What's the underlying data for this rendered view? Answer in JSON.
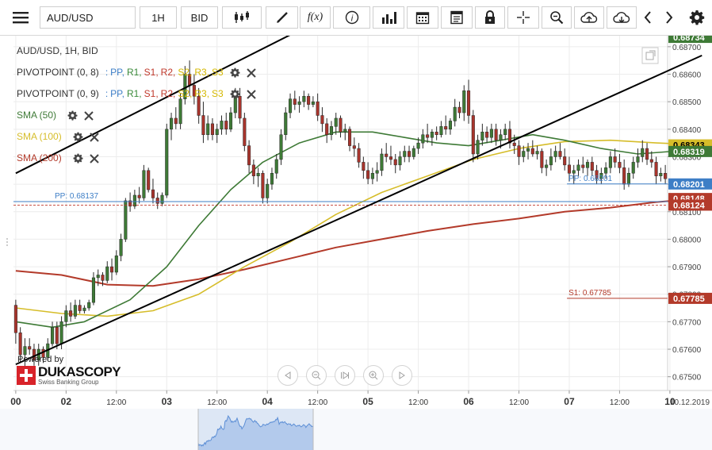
{
  "toolbar": {
    "symbol": "AUD/USD",
    "timeframe": "1H",
    "price_type": "BID",
    "buttons": [
      "menu-icon",
      "candles-icon",
      "draw-icon",
      "fx",
      "info-icon",
      "bars-icon",
      "calendar-icon",
      "report-icon",
      "lock-icon",
      "crosshair-icon",
      "zoom-icon",
      "upload-icon",
      "download-icon",
      "prev-icon",
      "next-icon",
      "gear-icon"
    ],
    "fx_label": "f(x)"
  },
  "legend": {
    "title": "AUD/USD, 1H, BID",
    "pivot1": {
      "name": "PIVOTPOINT (0, 8)"
    },
    "pivot2": {
      "name": "PIVOTPOINT (0, 9)"
    },
    "pivot_colon": ":",
    "pivot_keys": [
      "PP",
      "R1",
      "S1",
      "R2",
      "S2",
      "R3",
      "S3"
    ],
    "pivot_colors": [
      "#3d7ec6",
      "#3a8a3a",
      "#c0392b",
      "#c0392b",
      "#d4b800",
      "#d4b800",
      "#d4b800"
    ],
    "sma50": "SMA (50)",
    "sma100": "SMA (100)",
    "sma200": "SMA (200)"
  },
  "branding": {
    "powered_by": "Powered by",
    "name": "DUKASCOPY",
    "tagline": "Swiss Banking Group"
  },
  "colors": {
    "sma50": "#3e7a36",
    "sma100": "#d6bd2a",
    "sma200": "#b33a2a",
    "up": "#3e7a36",
    "down": "#a8342c",
    "pp": "#3d7ec6",
    "s1": "#b33a2a",
    "trend": "#000000"
  },
  "chart_data": {
    "type": "candlestick",
    "ylim": [
      0.6745,
      0.6874
    ],
    "y_ticks": [
      0.675,
      0.676,
      0.677,
      0.678,
      0.679,
      0.68,
      0.681,
      0.682,
      0.683,
      0.684,
      0.685,
      0.686,
      0.687
    ],
    "y_tick_labels": [
      "0.67500",
      "0.67600",
      "0.67700",
      "0.67800",
      "0.67900",
      "0.68000",
      "0.68100",
      "0.68200",
      "0.68300",
      "0.68400",
      "0.68500",
      "0.68600",
      "0.68700"
    ],
    "x_ticks": [
      {
        "label": "00",
        "bar": 0
      },
      {
        "label": "02",
        "bar": 11
      },
      {
        "label": "12:00",
        "bar": 22
      },
      {
        "label": "03",
        "bar": 33
      },
      {
        "label": "12:00",
        "bar": 44
      },
      {
        "label": "04",
        "bar": 55
      },
      {
        "label": "12:00",
        "bar": 66
      },
      {
        "label": "05",
        "bar": 77
      },
      {
        "label": "12:00",
        "bar": 88
      },
      {
        "label": "06",
        "bar": 99
      },
      {
        "label": "12:00",
        "bar": 110
      },
      {
        "label": "07",
        "bar": 121
      },
      {
        "label": "12:00",
        "bar": 132
      },
      {
        "label": "10",
        "bar": 143
      }
    ],
    "date_label": "10.12.2019",
    "candles": [
      [
        0.6776,
        0.6778,
        0.6762,
        0.6766
      ],
      [
        0.6766,
        0.6768,
        0.6755,
        0.6758
      ],
      [
        0.6758,
        0.6764,
        0.6753,
        0.6761
      ],
      [
        0.6761,
        0.6764,
        0.6758,
        0.676
      ],
      [
        0.676,
        0.6762,
        0.6754,
        0.6756
      ],
      [
        0.6756,
        0.6762,
        0.6754,
        0.676
      ],
      [
        0.676,
        0.6761,
        0.6755,
        0.6757
      ],
      [
        0.6757,
        0.6764,
        0.6756,
        0.6762
      ],
      [
        0.6762,
        0.677,
        0.6761,
        0.6768
      ],
      [
        0.6768,
        0.677,
        0.676,
        0.6762
      ],
      [
        0.6762,
        0.6772,
        0.676,
        0.677
      ],
      [
        0.677,
        0.6776,
        0.6768,
        0.6774
      ],
      [
        0.6774,
        0.6777,
        0.677,
        0.6772
      ],
      [
        0.6772,
        0.6778,
        0.6771,
        0.6776
      ],
      [
        0.6776,
        0.6778,
        0.6773,
        0.6774
      ],
      [
        0.6774,
        0.6776,
        0.6773,
        0.6775
      ],
      [
        0.6775,
        0.6778,
        0.6774,
        0.6777
      ],
      [
        0.6777,
        0.6788,
        0.6776,
        0.6786
      ],
      [
        0.6786,
        0.6789,
        0.6783,
        0.6787
      ],
      [
        0.6787,
        0.6788,
        0.6783,
        0.6785
      ],
      [
        0.6785,
        0.6792,
        0.6784,
        0.679
      ],
      [
        0.679,
        0.6793,
        0.6785,
        0.6788
      ],
      [
        0.6788,
        0.6796,
        0.6787,
        0.6794
      ],
      [
        0.6794,
        0.6802,
        0.6792,
        0.68
      ],
      [
        0.68,
        0.6815,
        0.6799,
        0.6814
      ],
      [
        0.6814,
        0.6817,
        0.681,
        0.6812
      ],
      [
        0.6812,
        0.6818,
        0.6811,
        0.6816
      ],
      [
        0.6816,
        0.6819,
        0.6813,
        0.6815
      ],
      [
        0.6815,
        0.6827,
        0.6814,
        0.6825
      ],
      [
        0.6825,
        0.6826,
        0.6817,
        0.6818
      ],
      [
        0.6818,
        0.6822,
        0.6813,
        0.6815
      ],
      [
        0.6815,
        0.6817,
        0.6811,
        0.6813
      ],
      [
        0.6813,
        0.6817,
        0.6812,
        0.6816
      ],
      [
        0.6816,
        0.6842,
        0.6815,
        0.684
      ],
      [
        0.684,
        0.6846,
        0.6836,
        0.6844
      ],
      [
        0.6844,
        0.6848,
        0.684,
        0.6842
      ],
      [
        0.6842,
        0.6853,
        0.684,
        0.6851
      ],
      [
        0.6851,
        0.6863,
        0.6849,
        0.686
      ],
      [
        0.686,
        0.6865,
        0.6852,
        0.6856
      ],
      [
        0.6856,
        0.686,
        0.6849,
        0.6852
      ],
      [
        0.6852,
        0.6855,
        0.6842,
        0.6845
      ],
      [
        0.6845,
        0.685,
        0.6835,
        0.6838
      ],
      [
        0.6838,
        0.6845,
        0.6836,
        0.6842
      ],
      [
        0.6842,
        0.6844,
        0.6836,
        0.6838
      ],
      [
        0.6838,
        0.6842,
        0.6835,
        0.684
      ],
      [
        0.684,
        0.6845,
        0.6838,
        0.6843
      ],
      [
        0.6843,
        0.6846,
        0.6838,
        0.684
      ],
      [
        0.684,
        0.6848,
        0.6839,
        0.6846
      ],
      [
        0.6846,
        0.6855,
        0.6844,
        0.6852
      ],
      [
        0.6852,
        0.6855,
        0.6842,
        0.6844
      ],
      [
        0.6844,
        0.6846,
        0.6832,
        0.6834
      ],
      [
        0.6834,
        0.6836,
        0.6824,
        0.6827
      ],
      [
        0.6827,
        0.6829,
        0.682,
        0.6823
      ],
      [
        0.6823,
        0.6826,
        0.6819,
        0.6824
      ],
      [
        0.6824,
        0.6825,
        0.6813,
        0.6815
      ],
      [
        0.6815,
        0.6822,
        0.6813,
        0.682
      ],
      [
        0.682,
        0.6826,
        0.6818,
        0.6824
      ],
      [
        0.6824,
        0.6831,
        0.6822,
        0.6829
      ],
      [
        0.6829,
        0.684,
        0.6827,
        0.6838
      ],
      [
        0.6838,
        0.6848,
        0.6836,
        0.6846
      ],
      [
        0.6846,
        0.6853,
        0.6844,
        0.6851
      ],
      [
        0.6851,
        0.6854,
        0.6847,
        0.6849
      ],
      [
        0.6849,
        0.6852,
        0.6846,
        0.685
      ],
      [
        0.685,
        0.6854,
        0.6848,
        0.6852
      ],
      [
        0.6852,
        0.6853,
        0.6847,
        0.6849
      ],
      [
        0.6849,
        0.6852,
        0.6848,
        0.685
      ],
      [
        0.685,
        0.6853,
        0.6843,
        0.6845
      ],
      [
        0.6845,
        0.6848,
        0.6839,
        0.6842
      ],
      [
        0.6842,
        0.6844,
        0.6835,
        0.6838
      ],
      [
        0.6838,
        0.6843,
        0.6836,
        0.6841
      ],
      [
        0.6841,
        0.6846,
        0.6838,
        0.6844
      ],
      [
        0.6844,
        0.6845,
        0.6837,
        0.6839
      ],
      [
        0.6839,
        0.6842,
        0.6836,
        0.684
      ],
      [
        0.684,
        0.6841,
        0.6832,
        0.6834
      ],
      [
        0.6834,
        0.6837,
        0.683,
        0.6833
      ],
      [
        0.6833,
        0.6835,
        0.6826,
        0.6828
      ],
      [
        0.6828,
        0.683,
        0.6822,
        0.6825
      ],
      [
        0.6825,
        0.6828,
        0.682,
        0.6822
      ],
      [
        0.6822,
        0.6826,
        0.682,
        0.6824
      ],
      [
        0.6824,
        0.6828,
        0.6821,
        0.6825
      ],
      [
        0.6825,
        0.6833,
        0.6823,
        0.6831
      ],
      [
        0.6831,
        0.6835,
        0.6828,
        0.683
      ],
      [
        0.683,
        0.6834,
        0.6827,
        0.6829
      ],
      [
        0.6829,
        0.6831,
        0.6824,
        0.6827
      ],
      [
        0.6827,
        0.6832,
        0.6825,
        0.683
      ],
      [
        0.683,
        0.6834,
        0.6828,
        0.6832
      ],
      [
        0.6832,
        0.6834,
        0.6828,
        0.683
      ],
      [
        0.683,
        0.6834,
        0.6829,
        0.6833
      ],
      [
        0.6833,
        0.6837,
        0.6831,
        0.6835
      ],
      [
        0.6835,
        0.684,
        0.6833,
        0.6838
      ],
      [
        0.6838,
        0.6842,
        0.6835,
        0.6837
      ],
      [
        0.6837,
        0.684,
        0.6834,
        0.6839
      ],
      [
        0.6839,
        0.6841,
        0.6836,
        0.6838
      ],
      [
        0.6838,
        0.6843,
        0.6837,
        0.6841
      ],
      [
        0.6841,
        0.6845,
        0.6838,
        0.684
      ],
      [
        0.684,
        0.6844,
        0.6838,
        0.6843
      ],
      [
        0.6843,
        0.6851,
        0.6841,
        0.6848
      ],
      [
        0.6848,
        0.685,
        0.6844,
        0.6846
      ],
      [
        0.6846,
        0.6856,
        0.6843,
        0.6854
      ],
      [
        0.6854,
        0.6858,
        0.6842,
        0.6845
      ],
      [
        0.6845,
        0.6847,
        0.6828,
        0.6831
      ],
      [
        0.6831,
        0.6838,
        0.6829,
        0.6836
      ],
      [
        0.6836,
        0.6842,
        0.6834,
        0.6839
      ],
      [
        0.6839,
        0.6841,
        0.6835,
        0.6837
      ],
      [
        0.6837,
        0.6842,
        0.6835,
        0.684
      ],
      [
        0.684,
        0.6842,
        0.6834,
        0.6836
      ],
      [
        0.6836,
        0.684,
        0.6833,
        0.6838
      ],
      [
        0.6838,
        0.6842,
        0.6836,
        0.684
      ],
      [
        0.684,
        0.6843,
        0.6833,
        0.6835
      ],
      [
        0.6835,
        0.6838,
        0.6831,
        0.6834
      ],
      [
        0.6834,
        0.6836,
        0.6827,
        0.683
      ],
      [
        0.683,
        0.6834,
        0.6828,
        0.6832
      ],
      [
        0.6832,
        0.6835,
        0.6829,
        0.6833
      ],
      [
        0.6833,
        0.6836,
        0.683,
        0.6831
      ],
      [
        0.6831,
        0.6834,
        0.6829,
        0.6832
      ],
      [
        0.6832,
        0.6833,
        0.6824,
        0.6826
      ],
      [
        0.6826,
        0.6829,
        0.6823,
        0.6827
      ],
      [
        0.6827,
        0.6833,
        0.6825,
        0.683
      ],
      [
        0.683,
        0.6834,
        0.6828,
        0.6832
      ],
      [
        0.6832,
        0.6835,
        0.6829,
        0.683
      ],
      [
        0.683,
        0.6833,
        0.6825,
        0.6827
      ],
      [
        0.6827,
        0.683,
        0.6821,
        0.6824
      ],
      [
        0.6824,
        0.6827,
        0.682,
        0.6825
      ],
      [
        0.6825,
        0.6829,
        0.6823,
        0.6827
      ],
      [
        0.6827,
        0.683,
        0.6824,
        0.6826
      ],
      [
        0.6826,
        0.6829,
        0.6823,
        0.6828
      ],
      [
        0.6828,
        0.683,
        0.6823,
        0.6825
      ],
      [
        0.6825,
        0.6827,
        0.682,
        0.6822
      ],
      [
        0.6822,
        0.6826,
        0.682,
        0.6824
      ],
      [
        0.6824,
        0.6828,
        0.6822,
        0.6826
      ],
      [
        0.6826,
        0.6832,
        0.6824,
        0.683
      ],
      [
        0.683,
        0.6833,
        0.6826,
        0.6828
      ],
      [
        0.6828,
        0.6831,
        0.6824,
        0.6826
      ],
      [
        0.6826,
        0.6829,
        0.6818,
        0.682
      ],
      [
        0.682,
        0.6826,
        0.6819,
        0.6824
      ],
      [
        0.6824,
        0.683,
        0.6822,
        0.6828
      ],
      [
        0.6828,
        0.6833,
        0.6826,
        0.683
      ],
      [
        0.683,
        0.6836,
        0.6828,
        0.6833
      ],
      [
        0.6833,
        0.6835,
        0.6827,
        0.6829
      ],
      [
        0.6829,
        0.6832,
        0.6826,
        0.6828
      ],
      [
        0.6828,
        0.683,
        0.682,
        0.6823
      ],
      [
        0.6823,
        0.6826,
        0.6821,
        0.6824
      ],
      [
        0.6824,
        0.6827,
        0.682,
        0.6822
      ]
    ],
    "sma50": [
      [
        0,
        0.677
      ],
      [
        8,
        0.6768
      ],
      [
        15,
        0.677
      ],
      [
        25,
        0.6778
      ],
      [
        33,
        0.679
      ],
      [
        40,
        0.6805
      ],
      [
        47,
        0.6818
      ],
      [
        54,
        0.6828
      ],
      [
        62,
        0.6835
      ],
      [
        70,
        0.6839
      ],
      [
        78,
        0.6839
      ],
      [
        85,
        0.6837
      ],
      [
        92,
        0.6835
      ],
      [
        99,
        0.6834
      ],
      [
        106,
        0.6836
      ],
      [
        113,
        0.6838
      ],
      [
        120,
        0.6836
      ],
      [
        128,
        0.6833
      ],
      [
        136,
        0.6831
      ],
      [
        144,
        0.6832
      ],
      [
        150,
        0.68318
      ]
    ],
    "sma100": [
      [
        0,
        0.6775
      ],
      [
        10,
        0.6773
      ],
      [
        20,
        0.6772
      ],
      [
        30,
        0.6774
      ],
      [
        40,
        0.678
      ],
      [
        50,
        0.679
      ],
      [
        60,
        0.6799
      ],
      [
        70,
        0.6809
      ],
      [
        80,
        0.6817
      ],
      [
        90,
        0.6823
      ],
      [
        100,
        0.6829
      ],
      [
        110,
        0.6833
      ],
      [
        120,
        0.68355
      ],
      [
        130,
        0.6836
      ],
      [
        140,
        0.6835
      ],
      [
        150,
        0.68343
      ]
    ],
    "sma200": [
      [
        0,
        0.67885
      ],
      [
        10,
        0.6787
      ],
      [
        20,
        0.67835
      ],
      [
        30,
        0.6783
      ],
      [
        40,
        0.67855
      ],
      [
        50,
        0.6789
      ],
      [
        60,
        0.6793
      ],
      [
        70,
        0.6797
      ],
      [
        80,
        0.68
      ],
      [
        90,
        0.6803
      ],
      [
        100,
        0.68055
      ],
      [
        110,
        0.68075
      ],
      [
        120,
        0.681
      ],
      [
        130,
        0.68115
      ],
      [
        140,
        0.68135
      ],
      [
        150,
        0.68148
      ]
    ],
    "trend_line": [
      [
        0,
        0.67545
      ],
      [
        150,
        0.68668
      ]
    ],
    "trend_line_upper": [
      [
        0,
        0.6824
      ],
      [
        62,
        0.6876
      ]
    ],
    "levels": [
      {
        "name": "PP",
        "label": "PP: 0.68137",
        "value": 0.68137,
        "color": "#3d7ec6"
      },
      {
        "name": "PP",
        "label": "PP: 0.68201",
        "value": 0.68201,
        "color": "#3d7ec6"
      },
      {
        "name": "S1",
        "label": "S1: 0.67785",
        "value": 0.67785,
        "color": "#b33a2a"
      }
    ],
    "current_bid": 0.68124,
    "price_badges": [
      {
        "label": "0.68343",
        "value": 0.68343,
        "color": "#d6bd2a",
        "text": "#000"
      },
      {
        "label": "0.68319",
        "value": 0.68319,
        "color": "#3e7a36",
        "text": "#fff"
      },
      {
        "label": "0.68201",
        "value": 0.68201,
        "color": "#3d7ec6",
        "text": "#fff"
      },
      {
        "label": "0.68148",
        "value": 0.68148,
        "color": "#b33a2a",
        "text": "#fff"
      },
      {
        "label": "0.68124",
        "value": 0.68124,
        "color": "#b33a2a",
        "text": "#fff"
      },
      {
        "label": "0.67785",
        "value": 0.67785,
        "color": "#b33a2a",
        "text": "#fff"
      },
      {
        "label": "0.68734",
        "value": 0.68734,
        "color": "#3e7a36",
        "text": "#fff"
      }
    ]
  }
}
